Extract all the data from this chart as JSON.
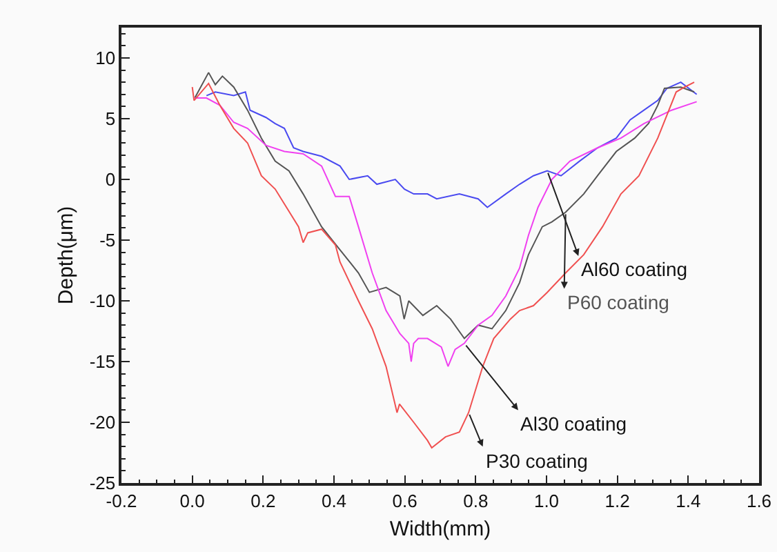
{
  "chart_data": {
    "type": "line",
    "xlabel": "Width(mm)",
    "ylabel": "Depth(μm)",
    "xlim": [
      -0.2,
      1.6
    ],
    "xticks": [
      {
        "value": -0.2,
        "label": "-0.2"
      },
      {
        "value": 0,
        "label": "0.0"
      },
      {
        "value": 0.2,
        "label": "0.2"
      },
      {
        "value": 0.4,
        "label": "0.4"
      },
      {
        "value": 0.6,
        "label": "0.6"
      },
      {
        "value": 0.8,
        "label": "0.8"
      },
      {
        "value": 1,
        "label": "1.0"
      },
      {
        "value": 1.2,
        "label": "1.2"
      },
      {
        "value": 1.4,
        "label": "1.4"
      },
      {
        "value": 1.6,
        "label": "1.6"
      }
    ],
    "ylim": [
      -25,
      12.5
    ],
    "yticks": [
      -25,
      -20,
      -15,
      -10,
      -5,
      0,
      5,
      10
    ],
    "grid": false,
    "legend": false,
    "series": [
      {
        "name": "Al60 coating",
        "color": "#4a4af0",
        "x": [
          0.04,
          0.065,
          0.117,
          0.15,
          0.163,
          0.208,
          0.234,
          0.26,
          0.286,
          0.313,
          0.365,
          0.417,
          0.443,
          0.495,
          0.521,
          0.573,
          0.599,
          0.625,
          0.664,
          0.69,
          0.754,
          0.807,
          0.833,
          0.885,
          0.924,
          0.963,
          1.002,
          1.041,
          1.093,
          1.144,
          1.197,
          1.236,
          1.275,
          1.314,
          1.34,
          1.379,
          1.424
        ],
        "values": [
          6.9,
          7.2,
          6.9,
          7.2,
          5.7,
          5.1,
          4.6,
          4.2,
          2.6,
          2.3,
          1.9,
          1.1,
          0,
          0.3,
          -0.4,
          0,
          -0.8,
          -1.2,
          -1.2,
          -1.6,
          -1.2,
          -1.6,
          -2.3,
          -1.2,
          -0.4,
          0.3,
          0.7,
          0.3,
          1.5,
          2.6,
          3.4,
          4.9,
          5.7,
          6.5,
          7.5,
          8,
          7
        ]
      },
      {
        "name": "P60 coating",
        "color": "#555555",
        "x": [
          0.007,
          0.046,
          0.065,
          0.085,
          0.117,
          0.156,
          0.195,
          0.234,
          0.273,
          0.313,
          0.365,
          0.417,
          0.469,
          0.5,
          0.547,
          0.586,
          0.598,
          0.611,
          0.651,
          0.69,
          0.729,
          0.768,
          0.807,
          0.846,
          0.885,
          0.924,
          0.949,
          0.988,
          1.015,
          1.054,
          1.105,
          1.144,
          1.197,
          1.249,
          1.288,
          1.314,
          1.333,
          1.379,
          1.417
        ],
        "values": [
          6.7,
          8.8,
          7.8,
          8.5,
          7.6,
          5.7,
          3.4,
          1.5,
          0.7,
          -1.2,
          -3.9,
          -5.8,
          -7.7,
          -9.3,
          -8.9,
          -9.6,
          -11.5,
          -10,
          -11.2,
          -10.4,
          -11.5,
          -13.1,
          -12,
          -12.3,
          -10.8,
          -8.5,
          -6.2,
          -3.9,
          -3.5,
          -2.7,
          -1.2,
          0.3,
          2.3,
          3.4,
          4.6,
          6.1,
          7.5,
          7.6,
          7.2
        ]
      },
      {
        "name": "Al30 coating",
        "color": "#f040f0",
        "x": [
          0.007,
          0.04,
          0.078,
          0.117,
          0.156,
          0.208,
          0.26,
          0.313,
          0.365,
          0.404,
          0.443,
          0.469,
          0.508,
          0.547,
          0.586,
          0.611,
          0.618,
          0.625,
          0.638,
          0.664,
          0.703,
          0.722,
          0.742,
          0.768,
          0.807,
          0.846,
          0.885,
          0.924,
          0.949,
          0.976,
          1.015,
          1.066,
          1.144,
          1.21,
          1.275,
          1.353,
          1.424
        ],
        "values": [
          6.7,
          6.7,
          6.1,
          4.7,
          4.2,
          2.8,
          2.3,
          2.1,
          1.1,
          -1.4,
          -1.4,
          -3.9,
          -7.7,
          -10.8,
          -12.7,
          -13.5,
          -15,
          -13.5,
          -13.1,
          -13.1,
          -13.8,
          -15.4,
          -14,
          -13.5,
          -12,
          -11.2,
          -9.6,
          -7.3,
          -4.6,
          -2.3,
          0,
          1.5,
          2.6,
          3.4,
          4.6,
          5.7,
          6.4
        ]
      },
      {
        "name": "P30 coating",
        "color": "#f05050",
        "x": [
          0,
          0.005,
          0.046,
          0.078,
          0.117,
          0.156,
          0.195,
          0.234,
          0.3,
          0.313,
          0.326,
          0.365,
          0.404,
          0.417,
          0.469,
          0.508,
          0.547,
          0.578,
          0.585,
          0.625,
          0.664,
          0.676,
          0.715,
          0.754,
          0.78,
          0.82,
          0.851,
          0.898,
          0.924,
          0.963,
          1.002,
          1.054,
          1.105,
          1.158,
          1.21,
          1.261,
          1.314,
          1.366,
          1.39,
          1.417
        ],
        "values": [
          7.6,
          6.5,
          7.9,
          6.1,
          4.2,
          3,
          0.3,
          -0.8,
          -3.9,
          -5.2,
          -4.4,
          -4.1,
          -5.4,
          -6.8,
          -10,
          -12.3,
          -15.4,
          -19.2,
          -18.5,
          -20,
          -21.5,
          -22.1,
          -21.2,
          -20.8,
          -19.2,
          -15.4,
          -13.1,
          -11.5,
          -10.8,
          -10.4,
          -9.3,
          -7.7,
          -6.2,
          -3.9,
          -1.2,
          0.3,
          3.4,
          7.2,
          7.6,
          8
        ]
      }
    ]
  }
}
